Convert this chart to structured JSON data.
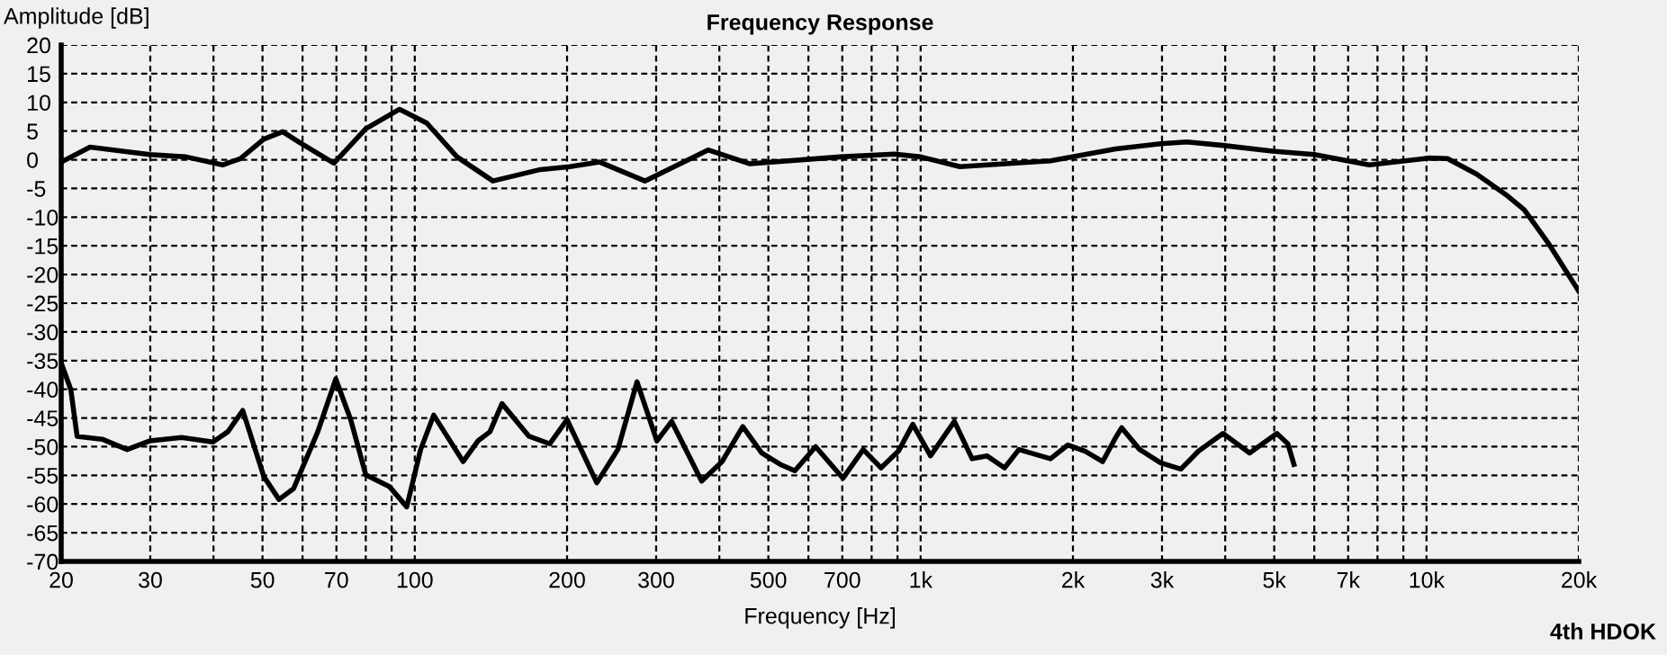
{
  "chart_data": {
    "type": "line",
    "title": "Frequency Response",
    "xlabel": "Frequency [Hz]",
    "ylabel": "Amplitude [dB]",
    "log": "x",
    "xlim": [
      20,
      20000
    ],
    "ylim": [
      -70,
      20
    ],
    "xticks": [
      20,
      30,
      {
        "value": 40,
        "label": null
      },
      50,
      {
        "value": 60,
        "label": null
      },
      70,
      {
        "value": 80,
        "label": null
      },
      {
        "value": 90,
        "label": null
      },
      100,
      200,
      300,
      {
        "value": 400,
        "label": null
      },
      500,
      {
        "value": 600,
        "label": null
      },
      700,
      {
        "value": 800,
        "label": null
      },
      {
        "value": 900,
        "label": null
      },
      {
        "value": 1000,
        "label": "1k"
      },
      {
        "value": 2000,
        "label": "2k"
      },
      {
        "value": 3000,
        "label": "3k"
      },
      {
        "value": 4000,
        "label": null
      },
      {
        "value": 5000,
        "label": "5k"
      },
      {
        "value": 6000,
        "label": null
      },
      {
        "value": 7000,
        "label": "7k"
      },
      {
        "value": 8000,
        "label": null
      },
      {
        "value": 9000,
        "label": null
      },
      {
        "value": 10000,
        "label": "10k"
      },
      {
        "value": 20000,
        "label": "20k"
      }
    ],
    "yticks": [
      -70,
      -65,
      -60,
      -55,
      -50,
      -45,
      -40,
      -35,
      -30,
      -25,
      -20,
      -15,
      -10,
      -5,
      0,
      5,
      10,
      15,
      20
    ],
    "grid": true,
    "line_style": "solid",
    "annotations": [
      "4th HDOK"
    ],
    "series": [
      {
        "color": "#000000",
        "x": [
          20,
          22.8,
          29.9,
          35.3,
          41.7,
          45.2,
          50.3,
          54.8,
          59.2,
          69.2,
          80,
          93.3,
          105.6,
          121.2,
          142.7,
          177.3,
          202.5,
          232,
          285,
          380,
          460,
          693,
          888,
          1000,
          1196,
          1806,
          2430,
          2980,
          3360,
          3960,
          4960,
          6000,
          7700,
          10100,
          11000,
          12560,
          14360,
          15600,
          17400,
          20000
        ],
        "values": [
          -0.4,
          2.2,
          0.9,
          0.5,
          -0.9,
          0.2,
          3.6,
          4.9,
          3.0,
          -0.6,
          5.4,
          8.8,
          6.4,
          0.5,
          -3.7,
          -1.7,
          -1.2,
          -0.4,
          -3.7,
          1.7,
          -0.7,
          0.5,
          1.0,
          0.5,
          -1.2,
          -0.2,
          1.9,
          2.8,
          3.1,
          2.5,
          1.5,
          0.9,
          -0.9,
          0.3,
          0.2,
          -2.5,
          -6.1,
          -8.7,
          -14.5,
          -22.9
        ]
      },
      {
        "color": "#000000",
        "x": [
          20,
          20.9,
          21.5,
          24.1,
          27.0,
          29.9,
          34.6,
          39.9,
          42.7,
          45.7,
          50.3,
          53.9,
          57.6,
          64.3,
          69.8,
          74.7,
          80,
          89.2,
          96.4,
          102.7,
          109,
          124.6,
          133.3,
          140.8,
          148.7,
          168.2,
          184.8,
          200,
          229,
          252,
          275,
          301,
          322,
          369,
          405,
          445,
          485,
          528,
          564,
          620,
          702,
          770,
          835,
          905,
          965,
          1046,
          1166,
          1264,
          1352,
          1465,
          1564,
          1806,
          1955,
          2116,
          2290,
          2430,
          2497,
          2710,
          2980,
          3270,
          3540,
          3960,
          4470,
          5060,
          5320,
          5470
        ],
        "values": [
          -35.4,
          -40.1,
          -48.2,
          -48.7,
          -50.5,
          -49.0,
          -48.4,
          -49.2,
          -47.4,
          -43.7,
          -55.2,
          -59.2,
          -57.3,
          -47.4,
          -38.2,
          -45.3,
          -54.9,
          -57.0,
          -60.5,
          -50.5,
          -44.5,
          -52.6,
          -49.0,
          -47.4,
          -42.5,
          -48.2,
          -49.5,
          -45.3,
          -56.3,
          -50.5,
          -38.7,
          -49.0,
          -45.6,
          -56.0,
          -52.6,
          -46.5,
          -51.1,
          -53.1,
          -54.2,
          -50.0,
          -55.5,
          -50.5,
          -53.7,
          -50.7,
          -46.1,
          -51.6,
          -45.6,
          -52.1,
          -51.6,
          -53.7,
          -50.5,
          -52.1,
          -49.7,
          -50.8,
          -52.6,
          -48.4,
          -46.7,
          -50.5,
          -52.8,
          -53.9,
          -50.8,
          -47.7,
          -51.1,
          -47.7,
          -49.5,
          -53.1
        ]
      }
    ]
  }
}
